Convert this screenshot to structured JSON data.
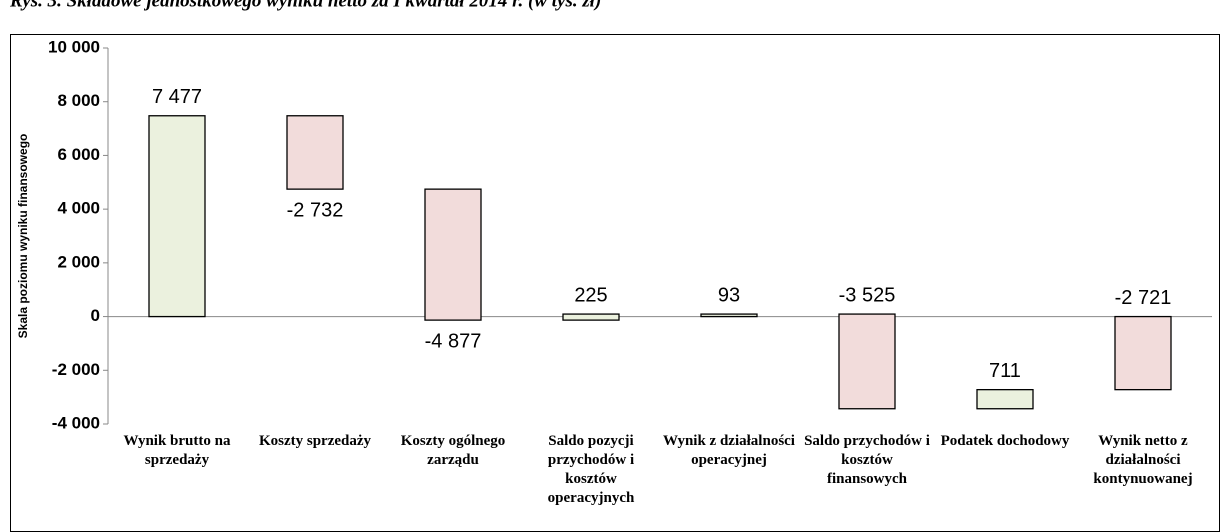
{
  "chart_data": {
    "type": "waterfall",
    "title": "Rys. 3. Składowe jednostkowego wyniku netto za I kwartał 2014 r. (w tys. zł)",
    "y_label": "Skala poziomu wyniku finansowego",
    "categories": [
      "Wynik brutto na sprzedaży",
      "Koszty sprzedaży",
      "Koszty ogólnego zarządu",
      "Saldo pozycji przychodów i kosztów operacyjnych",
      "Wynik z działalności operacyjnej",
      "Saldo przychodów i kosztów finansowych",
      "Podatek dochodowy",
      "Wynik netto z działalności kontynuowanej"
    ],
    "values": [
      7477,
      -2732,
      -4877,
      225,
      93,
      -3525,
      711,
      -2721
    ],
    "value_labels": [
      "7 477",
      "-2 732",
      "-4 877",
      "225",
      "93",
      "-3 525",
      "711",
      "-2 721"
    ],
    "measures": [
      "total",
      "relative",
      "relative",
      "relative",
      "total",
      "relative",
      "relative",
      "total"
    ],
    "colors": [
      "#ebf1de",
      "#f2dcdb",
      "#f2dcdb",
      "#ebf1de",
      "#ebf1de",
      "#f2dcdb",
      "#ebf1de",
      "#f2dcdb"
    ],
    "ylim": [
      -4000,
      10000
    ],
    "yticks": [
      {
        "value": -4000,
        "label": "-4 000"
      },
      {
        "value": -2000,
        "label": "-2 000"
      },
      0,
      {
        "value": 2000,
        "label": "2 000"
      },
      {
        "value": 4000,
        "label": "4 000"
      },
      {
        "value": 6000,
        "label": "6 000"
      },
      {
        "value": 8000,
        "label": "8 000"
      },
      {
        "value": 10000,
        "label": "10 000"
      }
    ]
  }
}
